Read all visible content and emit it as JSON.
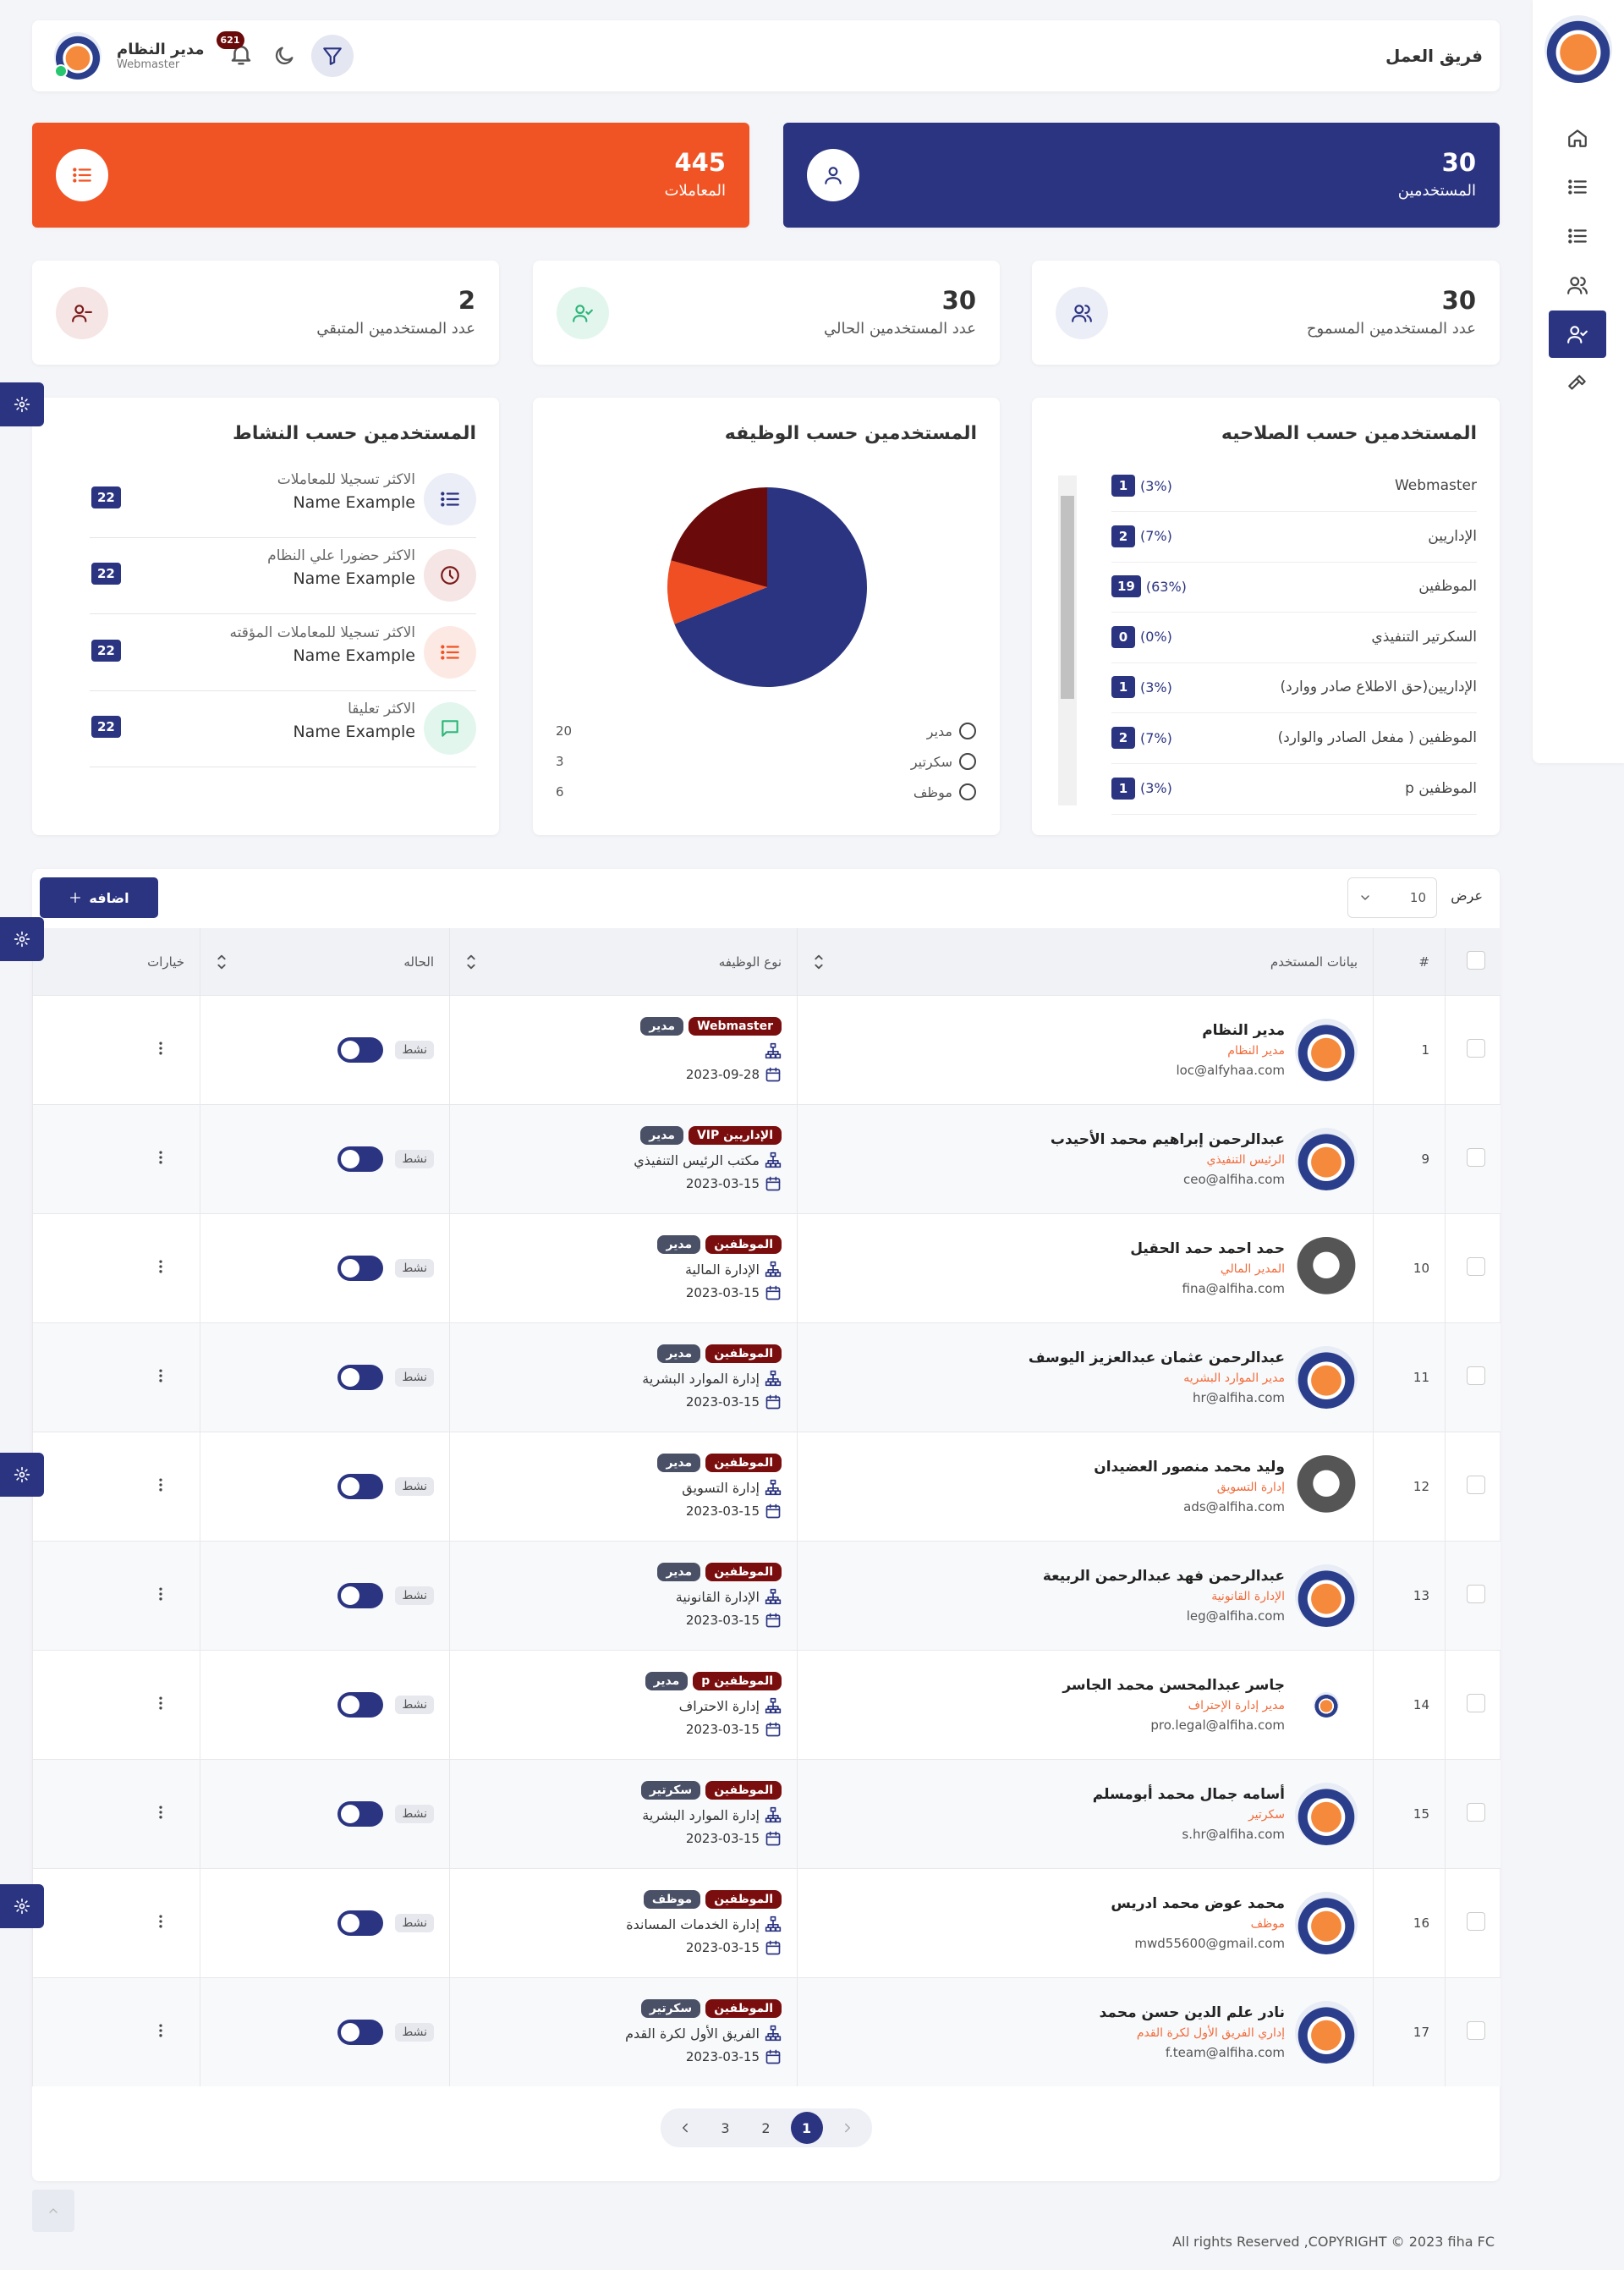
{
  "header": {
    "title": "فريق العمل",
    "user_name": "مدير النظام",
    "user_role": "Webmaster",
    "notifications": 621
  },
  "summary_cards": [
    {
      "value": 30,
      "label": "المستخدمين"
    },
    {
      "value": 445,
      "label": "المعاملات"
    }
  ],
  "stat_cards": [
    {
      "value": 30,
      "label": "عدد المستخدمين المسموح"
    },
    {
      "value": 30,
      "label": "عدد المستخدمين الحالي"
    },
    {
      "value": 2,
      "label": "عدد المستخدمين المتبقي"
    }
  ],
  "roles_panel": {
    "title": "المستخدمين حسب الصلاحيه",
    "items": [
      {
        "label": "Webmaster",
        "count": 1,
        "percent": "(3%)"
      },
      {
        "label": "الإداريين",
        "count": 2,
        "percent": "(7%)"
      },
      {
        "label": "الموظفين",
        "count": 19,
        "percent": "(63%)"
      },
      {
        "label": "السكرتير التنفيذي",
        "count": 0,
        "percent": "(0%)"
      },
      {
        "label": "الإداريين(حق الاطلاع صادر ووارد)",
        "count": 1,
        "percent": "(3%)"
      },
      {
        "label": "الموظفين ( مفعل الصادر والوارد)",
        "count": 2,
        "percent": "(7%)"
      },
      {
        "label": "الموظفين p",
        "count": 1,
        "percent": "(3%)"
      }
    ]
  },
  "chart_data": {
    "type": "pie",
    "title": "المستخدمين حسب الوظيفه",
    "categories": [
      "مدير",
      "سكرتير",
      "موظف"
    ],
    "values": [
      20,
      3,
      6
    ],
    "colors": [
      "#2b3481",
      "#f04e23",
      "#6b0a0a"
    ]
  },
  "activity_panel": {
    "title": "المستخدمين حسب النشاط",
    "items": [
      {
        "label": "الاكثر تسجيلا للمعاملات",
        "name": "Name Example",
        "count": 22
      },
      {
        "label": "الاكثر حضورا علي النظام",
        "name": "Name Example",
        "count": 22
      },
      {
        "label": "الاكثر تسجيلا للمعاملات المؤقته",
        "name": "Name Example",
        "count": 22
      },
      {
        "label": "الاكثر تعليقا",
        "name": "Name Example",
        "count": 22
      }
    ]
  },
  "table": {
    "show_label": "عرض",
    "page_size": 10,
    "add_button": "اضافه",
    "columns": [
      "#",
      "بيانات المستخدم",
      "نوع الوظيفه",
      "الحاله",
      "خيارات"
    ],
    "rows": [
      {
        "id": 1,
        "name": "مدير النظام",
        "position": "مدير النظام",
        "email": "loc@alfyhaa.com",
        "badges": [
          "Webmaster",
          "مدير"
        ],
        "date": "2023-09-28",
        "status": "نشط"
      },
      {
        "id": 9,
        "name": "عبدالرحمن إبراهيم محمد الأحيدب",
        "position": "الرئيس التنفيذي",
        "email": "ceo@alfiha.com",
        "badges": [
          "الإداريين VIP",
          "مدير"
        ],
        "department": "مكتب الرئيس التنفيذي",
        "date": "2023-03-15",
        "status": "نشط"
      },
      {
        "id": 10,
        "name": "حمد احمد حمد الحقيل",
        "position": "المدير المالي",
        "email": "fina@alfiha.com",
        "badges": [
          "الموظفين",
          "مدير"
        ],
        "department": "الإدارة المالية",
        "date": "2023-03-15",
        "status": "نشط"
      },
      {
        "id": 11,
        "name": "عبدالرحمن عثمان عبدالعزيز اليوسف",
        "position": "مدير الموارد البشريه",
        "email": "hr@alfiha.com",
        "badges": [
          "الموظفين",
          "مدير"
        ],
        "department": "إدارة الموارد البشرية",
        "date": "2023-03-15",
        "status": "نشط"
      },
      {
        "id": 12,
        "name": "وليد محمد منصور العضيدان",
        "position": "إدارة التسويق",
        "email": "ads@alfiha.com",
        "badges": [
          "الموظفين",
          "مدير"
        ],
        "department": "إدارة التسويق",
        "date": "2023-03-15",
        "status": "نشط"
      },
      {
        "id": 13,
        "name": "عبدالرحمن فهد عبدالرحمن الربيعة",
        "position": "الإدارة القانونية",
        "email": "leg@alfiha.com",
        "badges": [
          "الموظفين",
          "مدير"
        ],
        "department": "الإدارة القانونية",
        "date": "2023-03-15",
        "status": "نشط"
      },
      {
        "id": 14,
        "name": "جاسر عبدالمحسن محمد الجاسر",
        "position": "مدير إدارة الإحتراف",
        "email": "pro.legal@alfiha.com",
        "badges": [
          "الموظفين p",
          "مدير"
        ],
        "department": "إدارة الاحتراف",
        "date": "2023-03-15",
        "status": "نشط"
      },
      {
        "id": 15,
        "name": "أسامه جمال محمد أبومسلم",
        "position": "سكرتير",
        "email": "s.hr@alfiha.com",
        "badges": [
          "الموظفين",
          "سكرتير"
        ],
        "department": "إدارة الموارد البشرية",
        "date": "2023-03-15",
        "status": "نشط"
      },
      {
        "id": 16,
        "name": "محمد عوض محمد ادريس",
        "position": "موظف",
        "email": "mwd55600@gmail.com",
        "badges": [
          "الموظفين",
          "موظف"
        ],
        "department": "إدارة الخدمات المساندة",
        "date": "2023-03-15",
        "status": "نشط"
      },
      {
        "id": 17,
        "name": "نادر علم الدين حسن محمد",
        "position": "إداري الفريق الأول لكرة القدم",
        "email": "f.team@alfiha.com",
        "badges": [
          "الموظفين",
          "سكرتير"
        ],
        "department": "الفريق الأول لكرة القدم",
        "date": "2023-03-15",
        "status": "نشط"
      }
    ],
    "pagination": [
      1,
      2,
      3
    ]
  },
  "footer": "All rights Reserved ,COPYRIGHT © 2023 fiha FC"
}
